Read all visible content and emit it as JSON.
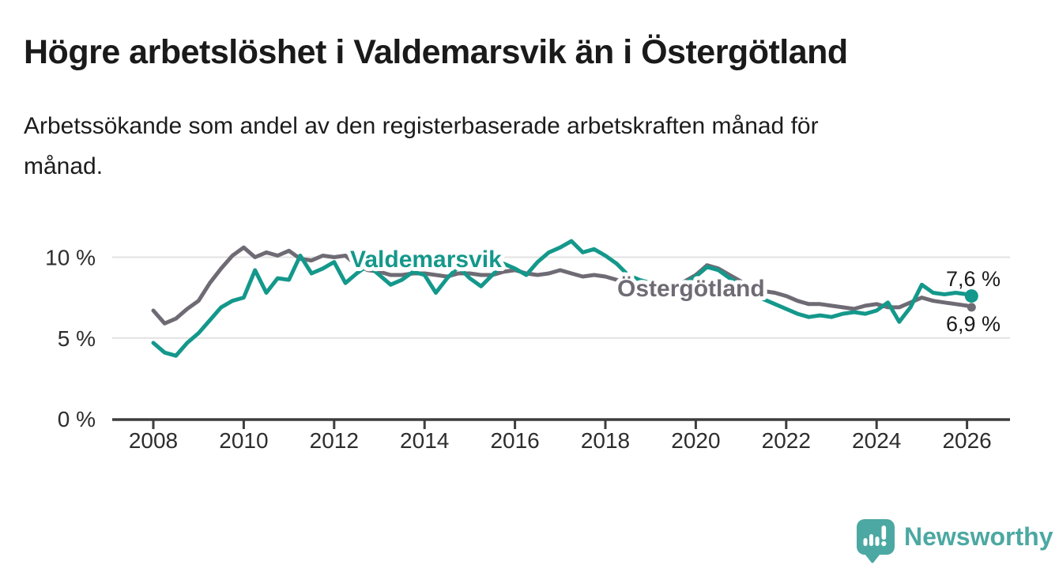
{
  "header": {
    "title": "Högre arbetslöshet i Valdemarsvik än i Östergötland",
    "subtitle_line1": "Arbetssökande som andel av den registerbaserade arbetskraften månad för",
    "subtitle_line2": "månad."
  },
  "branding": {
    "name": "Newsworthy",
    "logo_icon": "bar-chart-speech-bubble-icon",
    "color": "#4CA8A2"
  },
  "colors": {
    "valdemarsvik": "#14988B",
    "ostergotland": "#6F6B74",
    "grid": "#E2E2E2",
    "axis": "#3D3D3D",
    "axis_text": "#2D2D2D",
    "annotation_text": "#1A1A1A",
    "background": "#FFFFFF"
  },
  "chart_data": {
    "type": "line",
    "title": "Högre arbetslöshet i Valdemarsvik än i Östergötland",
    "subtitle": "Arbetssökande som andel av den registerbaserade arbetskraften månad för månad.",
    "xlabel": "",
    "ylabel": "",
    "grid": "horizontal-only",
    "legend_position": "inline-labels-on-lines",
    "x_axis": {
      "start_year": 2008,
      "step_years": 0.25,
      "last_x": 2026.1,
      "tick_years": [
        2008,
        2010,
        2012,
        2014,
        2016,
        2018,
        2020,
        2022,
        2024,
        2026
      ],
      "tick_labels": [
        "2008",
        "2010",
        "2012",
        "2014",
        "2016",
        "2018",
        "2020",
        "2022",
        "2024",
        "2026"
      ]
    },
    "y_axis": {
      "range": [
        0,
        11.8
      ],
      "ticks": [
        {
          "label": "0 %",
          "value": 0
        },
        {
          "label": "5 %",
          "value": 5
        },
        {
          "label": "10 %",
          "value": 10
        }
      ],
      "gridline_values": [
        5,
        10
      ]
    },
    "series": [
      {
        "name": "Valdemarsvik",
        "color": "#14988B",
        "end_label": "7,6 %",
        "end_value": 7.6,
        "values": [
          4.7,
          4.1,
          3.9,
          4.7,
          5.3,
          6.1,
          6.9,
          7.3,
          7.5,
          9.2,
          7.8,
          8.7,
          8.6,
          10.1,
          9.0,
          9.3,
          9.7,
          8.4,
          9.0,
          9.5,
          8.9,
          8.3,
          8.6,
          9.1,
          8.9,
          7.8,
          8.7,
          9.4,
          8.7,
          8.2,
          8.9,
          9.6,
          9.3,
          8.9,
          9.7,
          10.3,
          10.6,
          11.0,
          10.3,
          10.5,
          10.1,
          9.6,
          8.9,
          8.6,
          8.4,
          8.2,
          8.2,
          8.4,
          8.8,
          9.4,
          9.2,
          8.7,
          8.3,
          7.8,
          7.4,
          7.1,
          6.8,
          6.5,
          6.3,
          6.4,
          6.3,
          6.5,
          6.6,
          6.5,
          6.7,
          7.2,
          6.0,
          6.9,
          8.3,
          7.8,
          7.7,
          7.8,
          7.7,
          7.6
        ]
      },
      {
        "name": "Östergötland",
        "color": "#6F6B74",
        "end_label": "6,9 %",
        "end_value": 6.9,
        "values": [
          6.7,
          5.9,
          6.2,
          6.8,
          7.3,
          8.4,
          9.3,
          10.1,
          10.6,
          10.0,
          10.3,
          10.1,
          10.4,
          9.9,
          9.8,
          10.1,
          10.0,
          10.1,
          9.5,
          9.2,
          9.1,
          8.9,
          8.9,
          9.0,
          9.0,
          8.9,
          8.8,
          9.0,
          9.0,
          8.9,
          8.9,
          9.1,
          9.2,
          9.0,
          8.9,
          9.0,
          9.2,
          9.0,
          8.8,
          8.9,
          8.8,
          8.6,
          8.4,
          8.3,
          8.2,
          8.1,
          8.2,
          8.5,
          8.9,
          9.5,
          9.3,
          8.9,
          8.5,
          8.1,
          7.9,
          7.8,
          7.6,
          7.3,
          7.1,
          7.1,
          7.0,
          6.9,
          6.8,
          7.0,
          7.1,
          6.9,
          6.9,
          7.2,
          7.5,
          7.3,
          7.2,
          7.1,
          7.0,
          6.9
        ]
      }
    ]
  }
}
